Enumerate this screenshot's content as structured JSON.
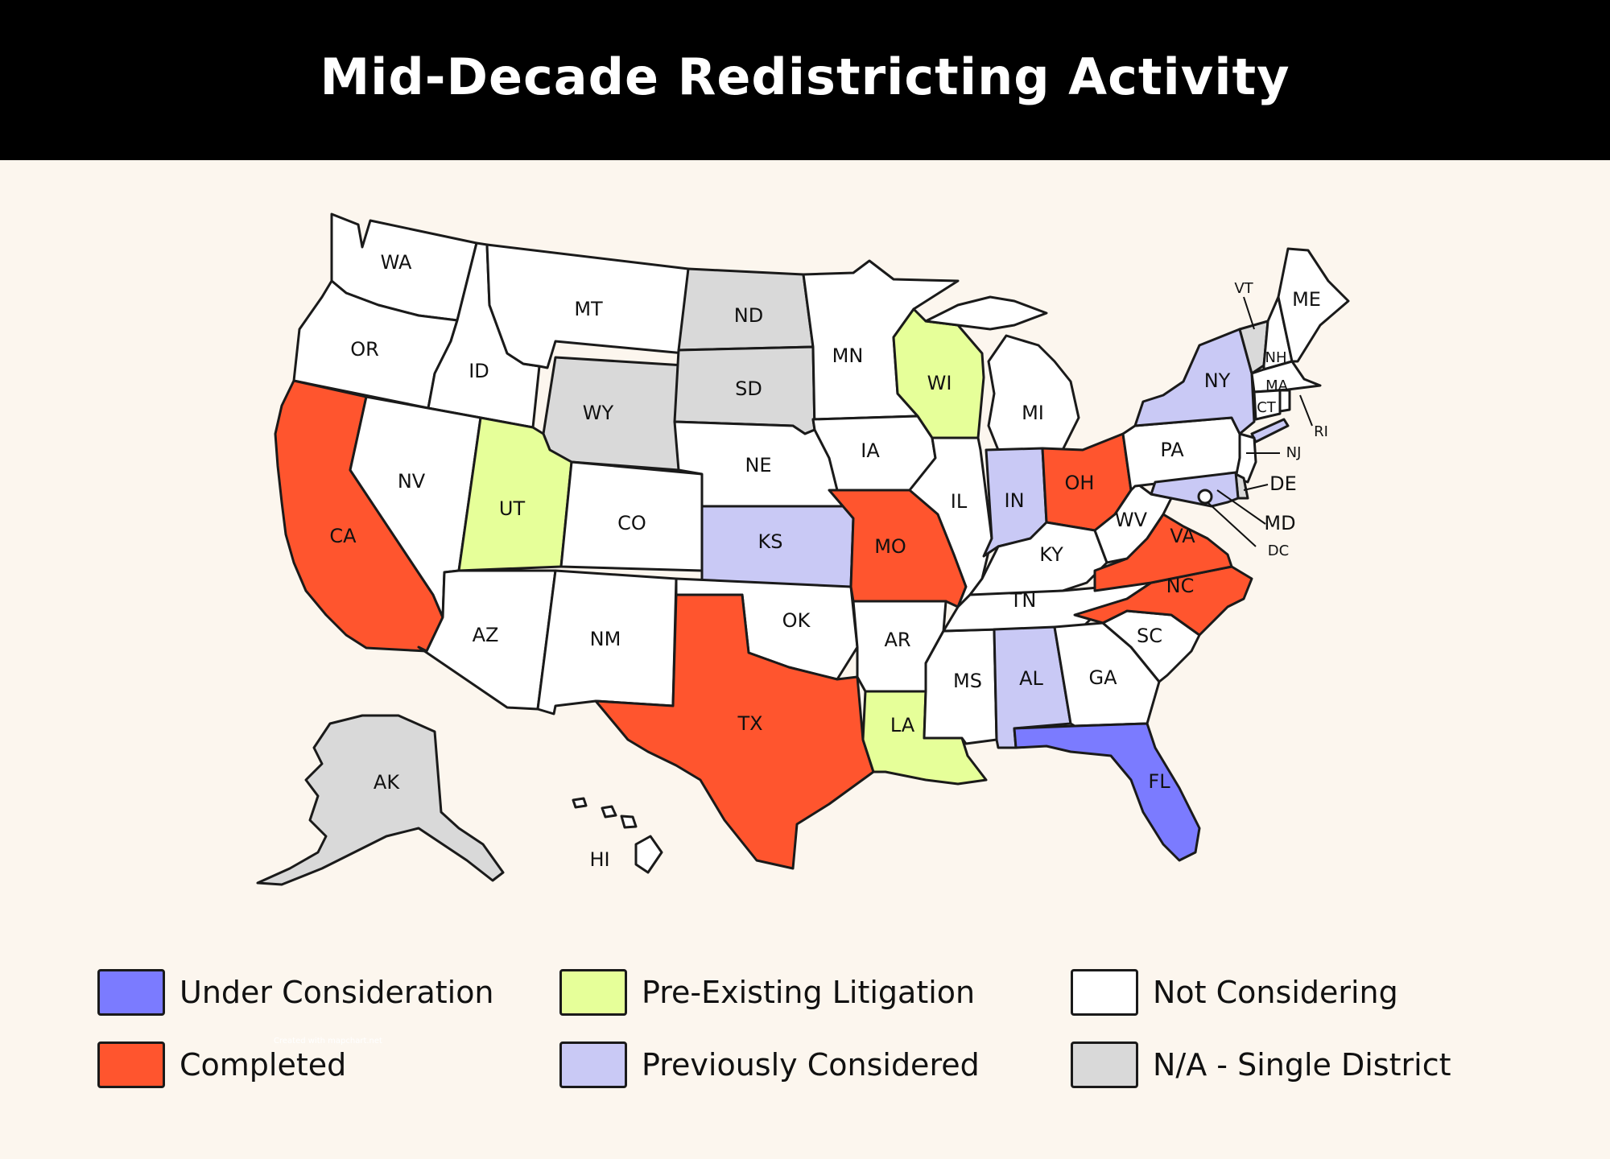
{
  "title": "Mid-Decade Redistricting Activity",
  "watermark": "Created with mapchart.net",
  "colors": {
    "under_consideration": "#7b7bff",
    "completed": "#ff552e",
    "pre_existing_litigation": "#e6ff99",
    "previously_considered": "#c9c9f5",
    "not_considering": "#ffffff",
    "na_single_district": "#d9d9d9"
  },
  "legend": [
    {
      "key": "under_consideration",
      "label": "Under Consideration"
    },
    {
      "key": "completed",
      "label": "Completed"
    },
    {
      "key": "pre_existing_litigation",
      "label": "Pre-Existing Litigation"
    },
    {
      "key": "previously_considered",
      "label": "Previously Considered"
    },
    {
      "key": "not_considering",
      "label": "Not Considering"
    },
    {
      "key": "na_single_district",
      "label": "N/A - Single District"
    }
  ],
  "states": [
    {
      "abbr": "WA",
      "status": "not_considering"
    },
    {
      "abbr": "OR",
      "status": "not_considering"
    },
    {
      "abbr": "CA",
      "status": "completed"
    },
    {
      "abbr": "ID",
      "status": "not_considering"
    },
    {
      "abbr": "NV",
      "status": "not_considering"
    },
    {
      "abbr": "MT",
      "status": "not_considering"
    },
    {
      "abbr": "WY",
      "status": "na_single_district"
    },
    {
      "abbr": "UT",
      "status": "pre_existing_litigation"
    },
    {
      "abbr": "AZ",
      "status": "not_considering"
    },
    {
      "abbr": "CO",
      "status": "not_considering"
    },
    {
      "abbr": "NM",
      "status": "not_considering"
    },
    {
      "abbr": "ND",
      "status": "na_single_district"
    },
    {
      "abbr": "SD",
      "status": "na_single_district"
    },
    {
      "abbr": "NE",
      "status": "not_considering"
    },
    {
      "abbr": "KS",
      "status": "previously_considered"
    },
    {
      "abbr": "OK",
      "status": "not_considering"
    },
    {
      "abbr": "TX",
      "status": "completed"
    },
    {
      "abbr": "MN",
      "status": "not_considering"
    },
    {
      "abbr": "IA",
      "status": "not_considering"
    },
    {
      "abbr": "MO",
      "status": "completed"
    },
    {
      "abbr": "AR",
      "status": "not_considering"
    },
    {
      "abbr": "LA",
      "status": "pre_existing_litigation"
    },
    {
      "abbr": "WI",
      "status": "pre_existing_litigation"
    },
    {
      "abbr": "IL",
      "status": "not_considering"
    },
    {
      "abbr": "MS",
      "status": "not_considering"
    },
    {
      "abbr": "MI",
      "status": "not_considering"
    },
    {
      "abbr": "IN",
      "status": "previously_considered"
    },
    {
      "abbr": "OH",
      "status": "completed"
    },
    {
      "abbr": "KY",
      "status": "not_considering"
    },
    {
      "abbr": "TN",
      "status": "not_considering"
    },
    {
      "abbr": "AL",
      "status": "previously_considered"
    },
    {
      "abbr": "GA",
      "status": "not_considering"
    },
    {
      "abbr": "FL",
      "status": "under_consideration"
    },
    {
      "abbr": "SC",
      "status": "not_considering"
    },
    {
      "abbr": "NC",
      "status": "completed"
    },
    {
      "abbr": "VA",
      "status": "completed"
    },
    {
      "abbr": "WV",
      "status": "not_considering"
    },
    {
      "abbr": "PA",
      "status": "not_considering"
    },
    {
      "abbr": "NY",
      "status": "previously_considered"
    },
    {
      "abbr": "VT",
      "status": "na_single_district"
    },
    {
      "abbr": "NH",
      "status": "not_considering"
    },
    {
      "abbr": "ME",
      "status": "not_considering"
    },
    {
      "abbr": "MA",
      "status": "not_considering"
    },
    {
      "abbr": "CT",
      "status": "not_considering"
    },
    {
      "abbr": "RI",
      "status": "not_considering"
    },
    {
      "abbr": "NJ",
      "status": "not_considering"
    },
    {
      "abbr": "DE",
      "status": "na_single_district"
    },
    {
      "abbr": "MD",
      "status": "previously_considered"
    },
    {
      "abbr": "DC",
      "status": "not_considering"
    },
    {
      "abbr": "AK",
      "status": "na_single_district"
    },
    {
      "abbr": "HI",
      "status": "not_considering"
    }
  ]
}
